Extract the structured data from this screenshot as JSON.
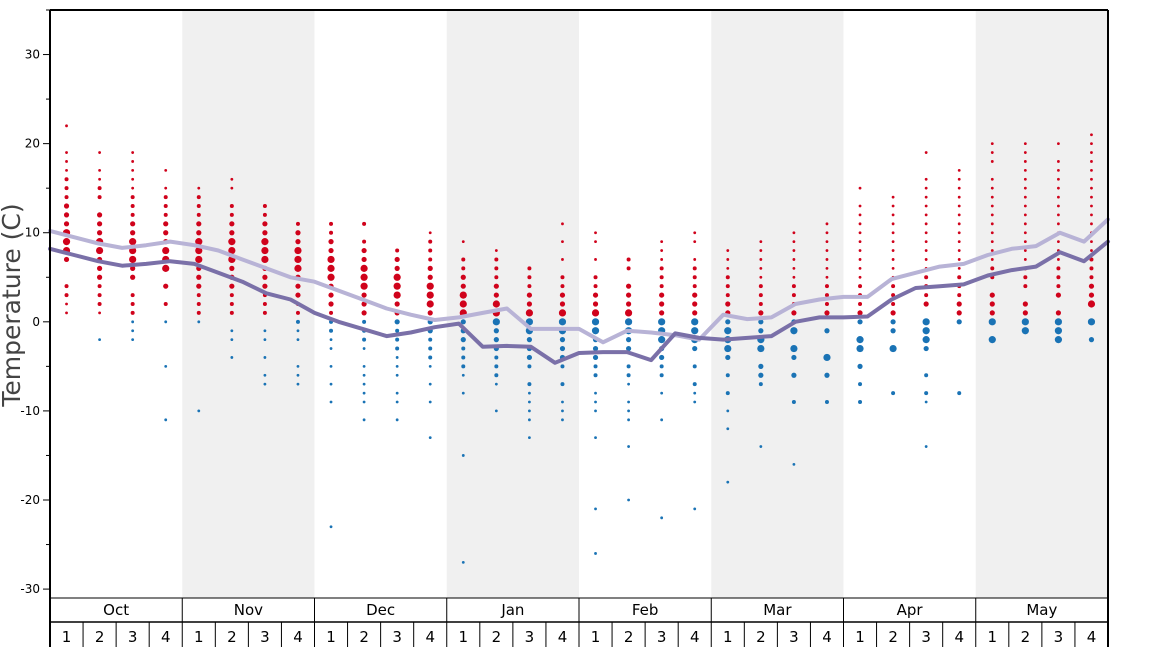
{
  "chart_data": {
    "type": "scatter",
    "ylabel": "Temperature (C)",
    "ylim": [
      -31,
      35
    ],
    "yticks": [
      -30,
      -20,
      -10,
      0,
      10,
      20,
      30
    ],
    "months": [
      "Oct",
      "Nov",
      "Dec",
      "Jan",
      "Feb",
      "Mar",
      "Apr",
      "May"
    ],
    "weeks": [
      "1",
      "2",
      "3",
      "4"
    ],
    "shaded_months": [
      "Nov",
      "Jan",
      "Mar",
      "May"
    ],
    "colors": {
      "warm_dots": "#d0021b",
      "cold_dots": "#1a73b5",
      "light_line": "#b8b3d6",
      "dark_line": "#7a70a8",
      "shade": "#f0f0f0"
    },
    "series": [
      {
        "values": [
          10.2,
          9.5,
          8.8,
          8.3,
          8.6,
          9.0,
          8.6,
          8.0,
          7.0,
          6.0,
          5.0,
          4.5,
          3.5,
          2.5,
          1.5,
          0.8,
          0.2,
          0.5,
          1.0,
          1.5,
          -0.8,
          -0.8,
          -0.8,
          -2.3,
          -1.0,
          -1.2,
          -1.5,
          -2.0,
          0.8,
          0.3,
          0.5,
          2.0,
          2.5,
          2.8,
          2.8,
          4.8,
          5.5,
          6.2,
          6.5,
          7.5,
          8.2,
          8.5,
          10.0,
          9.0,
          11.5
        ]
      },
      {
        "values": [
          8.2,
          7.5,
          6.8,
          6.3,
          6.5,
          6.8,
          6.5,
          5.5,
          4.5,
          3.2,
          2.5,
          1.0,
          0.0,
          -0.8,
          -1.6,
          -1.2,
          -0.6,
          -0.2,
          -2.8,
          -2.7,
          -2.8,
          -4.6,
          -3.5,
          -3.4,
          -3.4,
          -4.3,
          -1.3,
          -1.8,
          -2.0,
          -1.8,
          -1.6,
          0.0,
          0.5,
          0.5,
          0.6,
          2.5,
          3.8,
          4.0,
          4.2,
          5.2,
          5.8,
          6.2,
          7.8,
          6.8,
          9.0
        ]
      }
    ],
    "dots": [
      {
        "m": 0,
        "w": 0,
        "t": [
          22,
          19,
          18,
          17,
          16,
          15,
          14,
          13,
          12,
          11,
          10,
          9,
          8,
          7,
          4,
          3,
          2,
          1
        ]
      },
      {
        "m": 0,
        "w": 1,
        "t": [
          19,
          17,
          16,
          15,
          14,
          12,
          11,
          10,
          9,
          8,
          7,
          6,
          5,
          4,
          3,
          2,
          1,
          -2
        ]
      },
      {
        "m": 0,
        "w": 2,
        "t": [
          19,
          18,
          17,
          16,
          15,
          14,
          13,
          12,
          11,
          10,
          9,
          8,
          7,
          6,
          5,
          3,
          2,
          1,
          0,
          -1,
          -2
        ]
      },
      {
        "m": 0,
        "w": 3,
        "t": [
          17,
          15,
          14,
          13,
          12,
          11,
          10,
          9,
          8,
          7,
          6,
          4,
          2,
          0,
          -5,
          -11
        ]
      },
      {
        "m": 1,
        "w": 0,
        "t": [
          15,
          14,
          13,
          12,
          11,
          10,
          9,
          8,
          7,
          6,
          5,
          4,
          3,
          2,
          1,
          0,
          -10
        ]
      },
      {
        "m": 1,
        "w": 1,
        "t": [
          16,
          15,
          13,
          12,
          11,
          10,
          9,
          8,
          7,
          6,
          5,
          4,
          3,
          2,
          1,
          -1,
          -2,
          -4
        ]
      },
      {
        "m": 1,
        "w": 2,
        "t": [
          13,
          12,
          11,
          10,
          9,
          8,
          7,
          6,
          5,
          4,
          3,
          2,
          1,
          -1,
          -2,
          -4,
          -6,
          -7
        ]
      },
      {
        "m": 1,
        "w": 3,
        "t": [
          11,
          10,
          9,
          8,
          7,
          6,
          5,
          4,
          3,
          2,
          1,
          0,
          -1,
          -2,
          -5,
          -6,
          -7
        ]
      },
      {
        "m": 2,
        "w": 0,
        "t": [
          11,
          10,
          9,
          8,
          7,
          6,
          5,
          4,
          3,
          2,
          1,
          0,
          -1,
          -2,
          -3,
          -5,
          -7,
          -9,
          -23
        ]
      },
      {
        "m": 2,
        "w": 1,
        "t": [
          11,
          9,
          8,
          7,
          6,
          5,
          4,
          3,
          2,
          1,
          0,
          -1,
          -2,
          -3,
          -5,
          -6,
          -7,
          -8,
          -9,
          -11
        ]
      },
      {
        "m": 2,
        "w": 2,
        "t": [
          8,
          7,
          6,
          5,
          4,
          3,
          2,
          1,
          0,
          -1,
          -2,
          -3,
          -4,
          -5,
          -6,
          -8,
          -9,
          -11
        ]
      },
      {
        "m": 2,
        "w": 3,
        "t": [
          10,
          9,
          8,
          7,
          6,
          5,
          4,
          3,
          2,
          1,
          0,
          -1,
          -2,
          -3,
          -4,
          -5,
          -7,
          -9,
          -13
        ]
      },
      {
        "m": 3,
        "w": 0,
        "t": [
          9,
          7,
          6,
          5,
          4,
          3,
          2,
          1,
          0,
          -1,
          -2,
          -3,
          -4,
          -5,
          -6,
          -8,
          -15,
          -27
        ]
      },
      {
        "m": 3,
        "w": 1,
        "t": [
          8,
          7,
          6,
          5,
          4,
          3,
          2,
          1,
          0,
          -1,
          -2,
          -3,
          -4,
          -5,
          -6,
          -7,
          -10
        ]
      },
      {
        "m": 3,
        "w": 2,
        "t": [
          6,
          5,
          4,
          3,
          2,
          1,
          0,
          -1,
          -2,
          -3,
          -4,
          -5,
          -7,
          -8,
          -9,
          -10,
          -11,
          -13
        ]
      },
      {
        "m": 3,
        "w": 3,
        "t": [
          11,
          9,
          7,
          5,
          4,
          3,
          2,
          1,
          0,
          -1,
          -2,
          -3,
          -4,
          -5,
          -7,
          -9,
          -10,
          -11
        ]
      },
      {
        "m": 4,
        "w": 0,
        "t": [
          10,
          9,
          7,
          5,
          4,
          3,
          2,
          1,
          0,
          -1,
          -2,
          -3,
          -4,
          -5,
          -6,
          -8,
          -9,
          -10,
          -13,
          -21,
          -26
        ]
      },
      {
        "m": 4,
        "w": 1,
        "t": [
          7,
          6,
          4,
          3,
          2,
          1,
          0,
          -1,
          -2,
          -3,
          -5,
          -6,
          -7,
          -9,
          -10,
          -11,
          -14,
          -20
        ]
      },
      {
        "m": 4,
        "w": 2,
        "t": [
          9,
          8,
          7,
          6,
          5,
          4,
          3,
          2,
          1,
          0,
          -1,
          -2,
          -3,
          -4,
          -5,
          -6,
          -8,
          -11,
          -22
        ]
      },
      {
        "m": 4,
        "w": 3,
        "t": [
          10,
          9,
          7,
          6,
          5,
          4,
          3,
          2,
          1,
          0,
          -1,
          -2,
          -3,
          -5,
          -7,
          -8,
          -9,
          -21
        ]
      },
      {
        "m": 5,
        "w": 0,
        "t": [
          8,
          7,
          6,
          5,
          4,
          3,
          2,
          1,
          0,
          -1,
          -2,
          -3,
          -4,
          -6,
          -8,
          -10,
          -12,
          -18
        ]
      },
      {
        "m": 5,
        "w": 1,
        "t": [
          9,
          8,
          7,
          6,
          5,
          4,
          3,
          2,
          1,
          0,
          -1,
          -2,
          -3,
          -5,
          -6,
          -7,
          -14
        ]
      },
      {
        "m": 5,
        "w": 2,
        "t": [
          10,
          9,
          8,
          7,
          6,
          5,
          4,
          3,
          2,
          1,
          0,
          -1,
          -3,
          -4,
          -6,
          -9,
          -16
        ]
      },
      {
        "m": 5,
        "w": 3,
        "t": [
          11,
          10,
          9,
          8,
          7,
          6,
          5,
          4,
          3,
          2,
          1,
          -1,
          -4,
          -6,
          -9
        ]
      },
      {
        "m": 6,
        "w": 0,
        "t": [
          15,
          13,
          12,
          11,
          10,
          9,
          8,
          7,
          6,
          5,
          4,
          3,
          2,
          1,
          0,
          -2,
          -3,
          -5,
          -7,
          -9
        ]
      },
      {
        "m": 6,
        "w": 1,
        "t": [
          14,
          13,
          12,
          11,
          10,
          9,
          8,
          7,
          6,
          5,
          4,
          3,
          2,
          1,
          0,
          -1,
          -3,
          -8
        ]
      },
      {
        "m": 6,
        "w": 2,
        "t": [
          19,
          16,
          15,
          14,
          13,
          12,
          11,
          10,
          9,
          8,
          7,
          6,
          5,
          4,
          3,
          2,
          0,
          -1,
          -2,
          -3,
          -6,
          -8,
          -9,
          -14
        ]
      },
      {
        "m": 6,
        "w": 3,
        "t": [
          17,
          16,
          15,
          14,
          13,
          12,
          11,
          10,
          9,
          8,
          7,
          6,
          5,
          4,
          3,
          2,
          1,
          0,
          -8
        ]
      },
      {
        "m": 7,
        "w": 0,
        "t": [
          20,
          19,
          18,
          16,
          15,
          14,
          13,
          12,
          11,
          10,
          9,
          8,
          7,
          6,
          5,
          3,
          2,
          1,
          0,
          -2
        ]
      },
      {
        "m": 7,
        "w": 1,
        "t": [
          20,
          19,
          18,
          17,
          16,
          15,
          14,
          13,
          12,
          11,
          10,
          9,
          8,
          7,
          6,
          5,
          4,
          2,
          1,
          0,
          -1
        ]
      },
      {
        "m": 7,
        "w": 2,
        "t": [
          20,
          18,
          17,
          16,
          15,
          14,
          13,
          12,
          11,
          10,
          9,
          8,
          7,
          6,
          5,
          4,
          3,
          1,
          0,
          -1,
          -2
        ]
      },
      {
        "m": 7,
        "w": 3,
        "t": [
          21,
          20,
          19,
          18,
          17,
          16,
          15,
          14,
          13,
          12,
          11,
          10,
          9,
          8,
          7,
          6,
          5,
          4,
          3,
          2,
          0,
          -2
        ]
      }
    ]
  }
}
